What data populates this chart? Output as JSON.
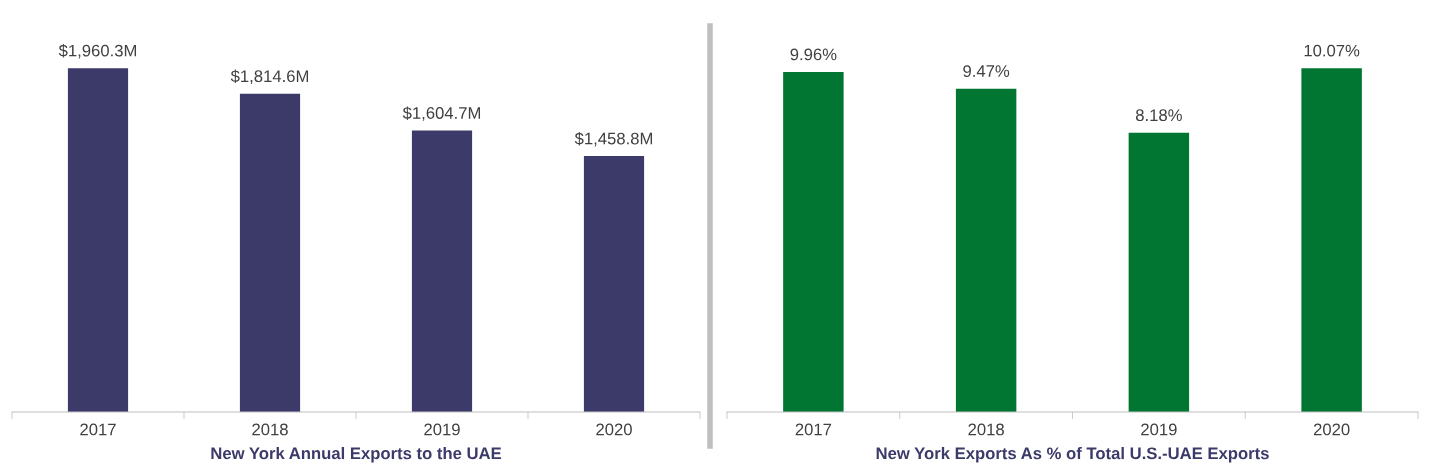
{
  "chart_data": [
    {
      "type": "bar",
      "xlabel": "New York Annual Exports to the UAE",
      "categories": [
        "2017",
        "2018",
        "2019",
        "2020"
      ],
      "values": [
        1960.3,
        1814.6,
        1604.7,
        1458.8
      ],
      "color": "#3b3a69",
      "value_labels": [
        "$1,960.3M",
        "$1,814.6M",
        "$1,604.7M",
        "$1,458.8M"
      ],
      "tick_labels": "x",
      "grid": false,
      "legend": false
    },
    {
      "type": "bar",
      "xlabel": "New York Exports As % of Total U.S.-UAE Exports",
      "categories": [
        "2017",
        "2018",
        "2019",
        "2020"
      ],
      "values": [
        9.96,
        9.47,
        8.18,
        10.07
      ],
      "color": "#007632",
      "value_labels": [
        "9.96%",
        "9.47%",
        "8.18%",
        "10.07%"
      ],
      "tick_labels": "x",
      "grid": false,
      "legend": false
    }
  ]
}
